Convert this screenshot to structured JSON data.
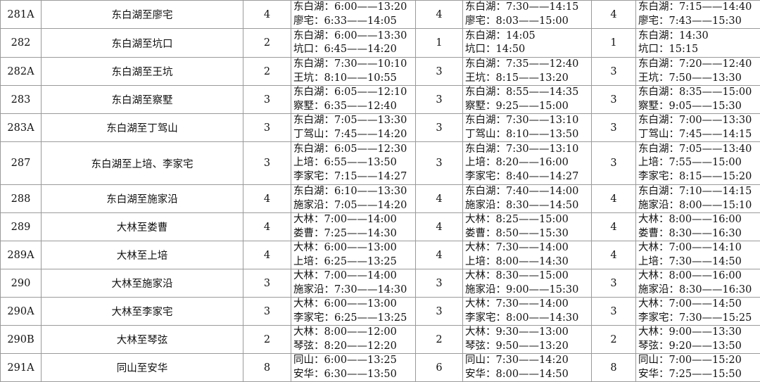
{
  "rows": [
    {
      "route": "281A",
      "name": "东白湖至廖宅",
      "n1": "4",
      "t1": [
        "东白湖：6:00——13:20",
        "廖宅：6:33——14:05"
      ],
      "n2": "4",
      "t2": [
        "东白湖：7:30——14:15",
        "廖宅：8:03——15:00"
      ],
      "n3": "4",
      "t3": [
        "东白湖：7:15——14:40",
        "廖宅：7:43——15:30"
      ]
    },
    {
      "route": "282",
      "name": "东白湖至坑口",
      "n1": "2",
      "t1": [
        "东白湖：6:00——13:30",
        "坑口：6:45——14:20"
      ],
      "n2": "1",
      "t2": [
        "东白湖：14:05",
        "坑口：14:50"
      ],
      "n3": "1",
      "t3": [
        "东白湖：14:30",
        "坑口：15:15"
      ]
    },
    {
      "route": "282A",
      "name": "东白湖至王坑",
      "n1": "2",
      "t1": [
        "东白湖：7:30——10:10",
        "王坑：8:10——10:55"
      ],
      "n2": "3",
      "t2": [
        "东白湖：7:35——12:40",
        "王坑：8:15——13:20"
      ],
      "n3": "3",
      "t3": [
        "东白湖：7:20——12:40",
        "王坑：7:50——13:30"
      ]
    },
    {
      "route": "283",
      "name": "东白湖至察墅",
      "n1": "3",
      "t1": [
        "东白湖：6:05——12:10",
        "察墅：6:35——12:40"
      ],
      "n2": "3",
      "t2": [
        "东白湖：8:55——14:35",
        "察墅：9:25——15:00"
      ],
      "n3": "3",
      "t3": [
        "东白湖：8:35——15:00",
        "察墅：9:05——15:30"
      ]
    },
    {
      "route": "283A",
      "name": "东白湖至丁驾山",
      "n1": "3",
      "t1": [
        "东白湖：7:05——13:30",
        "丁驾山：7:45——14:20"
      ],
      "n2": "3",
      "t2": [
        "东白湖：7:30——13:10",
        "丁驾山：8:10——13:50"
      ],
      "n3": "3",
      "t3": [
        "东白湖：7:00——13:30",
        "丁驾山：7:45——14:15"
      ]
    },
    {
      "route": "287",
      "name": "东白湖至上培、李家宅",
      "n1": "3",
      "t1": [
        "东白湖：6:05——12:30",
        "上培：6:55——13:50",
        "李家宅：7:15——14:27"
      ],
      "n2": "3",
      "t2": [
        "东白湖：7:30——13:10",
        "上培：8:20——16:00",
        "李家宅：8:40——14:27"
      ],
      "n3": "3",
      "t3": [
        "东白湖：7:05——13:40",
        "上培：7:55——15:00",
        "李家宅：8:15——15:20"
      ]
    },
    {
      "route": "288",
      "name": "东白湖至施家沿",
      "n1": "4",
      "t1": [
        "东白湖：6:10——13:30",
        "施家沿：7:05——14:20"
      ],
      "n2": "4",
      "t2": [
        "东白湖：7:40——14:00",
        "施家沿：8:30——14:50"
      ],
      "n3": "4",
      "t3": [
        "东白湖：7:10——14:15",
        "施家沿：8:00——15:10"
      ]
    },
    {
      "route": "289",
      "name": "大林至娄曹",
      "n1": "4",
      "t1": [
        "大林：7:00——14:00",
        "娄曹：7:25——14:30"
      ],
      "n2": "4",
      "t2": [
        "大林：8:25——15:00",
        "娄曹：8:50——15:30"
      ],
      "n3": "4",
      "t3": [
        "大林：8:00——16:00",
        "娄曹：8:30——16:30"
      ]
    },
    {
      "route": "289A",
      "name": "大林至上培",
      "n1": "4",
      "t1": [
        "大林：6:00——13:00",
        "上培：6:25——13:25"
      ],
      "n2": "4",
      "t2": [
        "大林：7:30——14:00",
        "上培：8:00——14:30"
      ],
      "n3": "4",
      "t3": [
        "大林：7:00——14:10",
        "上培：7:30——14:50"
      ]
    },
    {
      "route": "290",
      "name": "大林至施家沿",
      "n1": "3",
      "t1": [
        "大林：7:00——14:00",
        "施家沿：7:30——14:30"
      ],
      "n2": "3",
      "t2": [
        "大林：8:30——15:00",
        "施家沿：9:00——15:30"
      ],
      "n3": "3",
      "t3": [
        "大林：8:00——16:00",
        "施家沿：8:30——16:30"
      ]
    },
    {
      "route": "290A",
      "name": "大林至李家宅",
      "n1": "3",
      "t1": [
        "大林：6:00——13:00",
        "李家宅：6:25——13:25"
      ],
      "n2": "3",
      "t2": [
        "大林：7:30——14:00",
        "李家宅：8:00——14:30"
      ],
      "n3": "3",
      "t3": [
        "大林：7:00——14:50",
        "李家宅：7:30——15:25"
      ]
    },
    {
      "route": "290B",
      "name": "大林至琴弦",
      "n1": "2",
      "t1": [
        "大林：8:00——12:00",
        "琴弦：8:20——12:20"
      ],
      "n2": "2",
      "t2": [
        "大林：9:30——13:00",
        "琴弦：9:50——13:20"
      ],
      "n3": "2",
      "t3": [
        "大林：9:00——13:30",
        "琴弦：9:20——13:50"
      ]
    },
    {
      "route": "291A",
      "name": "同山至安华",
      "n1": "8",
      "t1": [
        "同山：6:00——13:25",
        "安华：6:30——13:50"
      ],
      "n2": "6",
      "t2": [
        "同山：7:30——14:20",
        "安华：8:00——14:50"
      ],
      "n3": "8",
      "t3": [
        "同山：7:00——15:20",
        "安华：7:25——15:50"
      ]
    }
  ]
}
